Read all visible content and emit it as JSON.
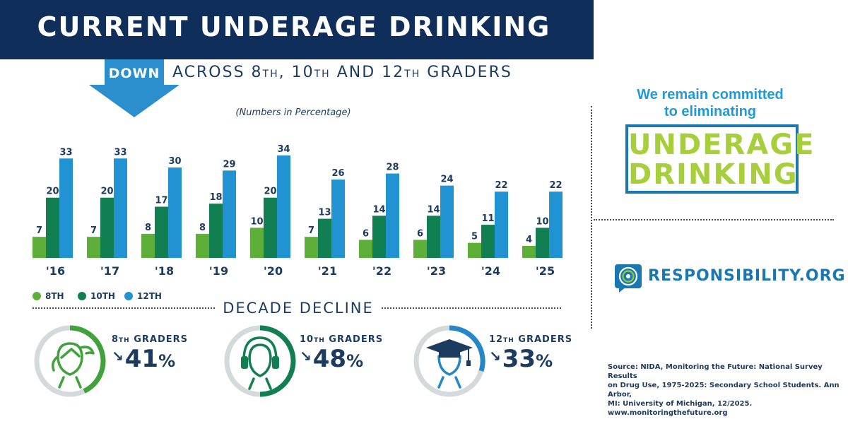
{
  "header": {
    "title": "CURRENT UNDERAGE DRINKING",
    "down_label": "DOWN",
    "subtitle_parts": [
      "ACROSS 8",
      "TH",
      ", 10",
      "TH",
      " AND 12",
      "TH",
      " GRADERS"
    ]
  },
  "chart_note": "(Numbers in Percentage)",
  "chart_data": {
    "type": "bar",
    "categories": [
      "'16",
      "'17",
      "'18",
      "'19",
      "'20",
      "'21",
      "'22",
      "'23",
      "'24",
      "'25"
    ],
    "series": [
      {
        "name": "8TH",
        "color": "#5eae3a",
        "values": [
          7,
          7,
          8,
          8,
          10,
          7,
          6,
          6,
          5,
          4
        ]
      },
      {
        "name": "10TH",
        "color": "#127f52",
        "values": [
          20,
          20,
          17,
          18,
          20,
          13,
          14,
          14,
          11,
          10
        ]
      },
      {
        "name": "12TH",
        "color": "#2293d2",
        "values": [
          33,
          33,
          30,
          29,
          34,
          26,
          28,
          24,
          22,
          22
        ]
      }
    ],
    "ylim": [
      0,
      34
    ],
    "grid": false,
    "legend_position": "bottom-left"
  },
  "legend": [
    {
      "label": "8TH",
      "color": "#5eae3a"
    },
    {
      "label": "10TH",
      "color": "#127f52"
    },
    {
      "label": "12TH",
      "color": "#2293d2"
    }
  ],
  "decade": {
    "title": "DECADE DECLINE",
    "stats": [
      {
        "label_num": "8",
        "label_sup": "TH",
        "label_rest": " GRADERS",
        "value": "41",
        "unit": "%",
        "ring_color": "#41a23c",
        "icon": "girl-icon"
      },
      {
        "label_num": "10",
        "label_sup": "TH",
        "label_rest": " GRADERS",
        "value": "48",
        "unit": "%",
        "ring_color": "#127f52",
        "icon": "headphones-icon"
      },
      {
        "label_num": "12",
        "label_sup": "TH",
        "label_rest": " GRADERS",
        "value": "33",
        "unit": "%",
        "ring_color": "#2687c6",
        "icon": "graduate-icon"
      }
    ]
  },
  "commitment": {
    "line1": "We remain committed",
    "line2": "to eliminating",
    "box_line1": "UNDERAGE",
    "box_line2": "DRINKING"
  },
  "brand": {
    "name": "RESPONSIBILITY.ORG"
  },
  "source_lines": [
    "Source: NIDA, Monitoring the Future: National Survey Results",
    "on Drug Use, 1975-2025: Secondary School Students. Ann Arbor,",
    "MI: University of Michigan, 12/2025.",
    "www.monitoringthefuture.org"
  ]
}
